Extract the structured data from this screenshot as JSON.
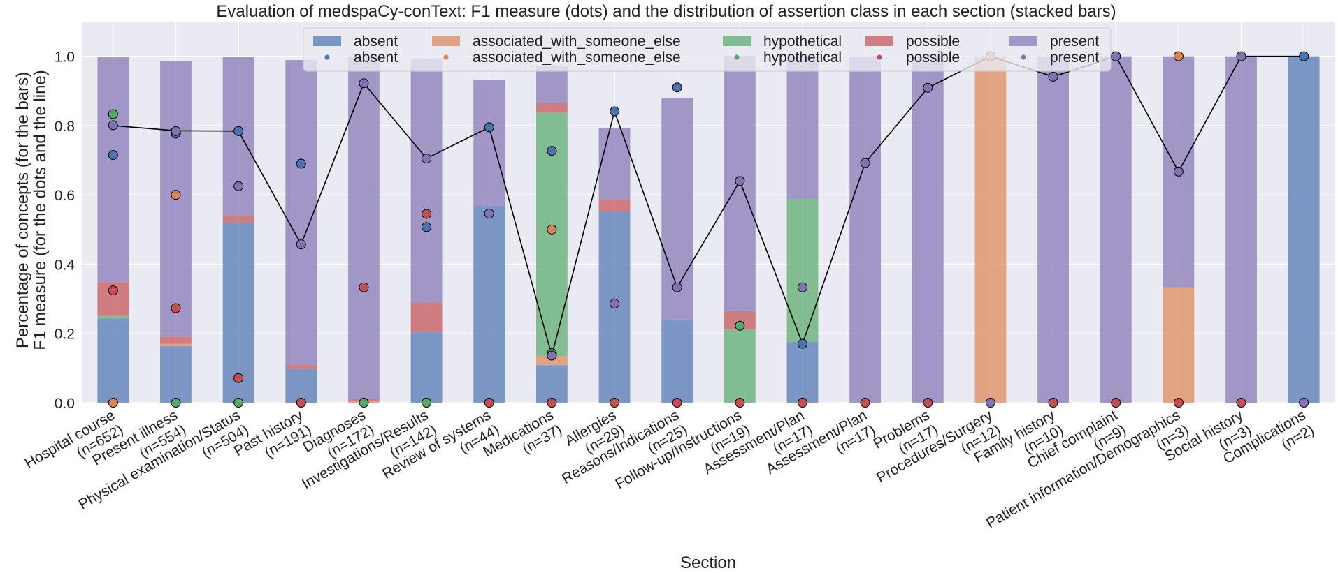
{
  "chart_data": {
    "type": "bar",
    "title": "Evaluation of medspaCy-conText: F1 measure (dots) and the distribution of assertion class in each section (stacked bars)",
    "xlabel": "Section",
    "ylabel_line1": "Percentage of concepts (for the bars)",
    "ylabel_line2": "F1 measure (for the dots and the line)",
    "ylim": [
      0,
      1.1
    ],
    "yticks": [
      "0.0",
      "0.2",
      "0.4",
      "0.6",
      "0.8",
      "1.0"
    ],
    "grid": true,
    "legend_position": "top-center",
    "categories": [
      "Hospital course\n(n=652)",
      "Present illness\n(n=554)",
      "Physical examination/Status\n(n=504)",
      "Past history\n(n=191)",
      "Diagnoses\n(n=172)",
      "Investigations/Results\n(n=142)",
      "Review of systems\n(n=44)",
      "Medications\n(n=37)",
      "Allergies\n(n=29)",
      "Reasons/Indications\n(n=25)",
      "Follow-up/Instructions\n(n=19)",
      "Assessment/Plan\n(n=17)",
      "Assessment/Plan\n(n=17)",
      "Problems\n(n=17)",
      "Procedures/Surgery\n(n=12)",
      "Family history\n(n=10)",
      "Chief complaint\n(n=9)",
      "Patient information/Demographics\n(n=3)",
      "Social history\n(n=3)",
      "Complications\n(n=2)"
    ],
    "bar_series": [
      {
        "name": "absent",
        "color": "#4c72b0",
        "values": [
          0.243,
          0.163,
          0.52,
          0.099,
          0.0,
          0.204,
          0.568,
          0.108,
          0.552,
          0.24,
          0.0,
          0.176,
          0,
          0,
          0,
          0,
          0,
          0,
          0,
          1.0
        ]
      },
      {
        "name": "associated_with_someone_else",
        "color": "#dd8452",
        "values": [
          0.0,
          0.007,
          0.0,
          0.0,
          0.006,
          0.0,
          0.0,
          0.027,
          0.0,
          0.0,
          0.0,
          0.0,
          0,
          0,
          1.0,
          0,
          0,
          0.333,
          0,
          0
        ]
      },
      {
        "name": "hypothetical",
        "color": "#55a868",
        "values": [
          0.008,
          0.0,
          0.0,
          0.0,
          0.0,
          0.0,
          0.0,
          0.703,
          0.0,
          0.0,
          0.211,
          0.412,
          0,
          0,
          0,
          0,
          0,
          0,
          0,
          0
        ]
      },
      {
        "name": "possible",
        "color": "#c44e52",
        "values": [
          0.097,
          0.02,
          0.02,
          0.01,
          0.004,
          0.085,
          0.0,
          0.027,
          0.034,
          0.0,
          0.053,
          0.0,
          0,
          0,
          0,
          0,
          0,
          0,
          0,
          0
        ]
      },
      {
        "name": "present",
        "color": "#8172b3",
        "values": [
          0.649,
          0.796,
          0.458,
          0.88,
          0.99,
          0.704,
          0.364,
          0.108,
          0.207,
          0.64,
          0.737,
          0.412,
          1.0,
          1.0,
          0,
          1.0,
          1.0,
          0.667,
          1.0,
          0
        ]
      }
    ],
    "dot_series": [
      {
        "name": "absent",
        "color": "#4c72b0",
        "values": [
          0.715,
          0.777,
          0.784,
          0.69,
          null,
          0.507,
          0.795,
          0.727,
          0.841,
          0.91,
          null,
          0.17,
          null,
          null,
          null,
          null,
          null,
          null,
          null,
          1.0
        ]
      },
      {
        "name": "associated_with_someone_else",
        "color": "#dd8452",
        "values": [
          0.0,
          0.6,
          null,
          null,
          null,
          null,
          null,
          0.5,
          null,
          null,
          null,
          null,
          null,
          null,
          1.0,
          null,
          null,
          1.0,
          null,
          null
        ]
      },
      {
        "name": "hypothetical",
        "color": "#55a868",
        "values": [
          0.833,
          0.0,
          0.0,
          null,
          0.0,
          0.0,
          null,
          0.143,
          null,
          null,
          0.222,
          null,
          null,
          null,
          null,
          null,
          null,
          null,
          null,
          null
        ]
      },
      {
        "name": "possible",
        "color": "#c44e52",
        "values": [
          0.324,
          0.273,
          0.071,
          0.0,
          0.333,
          0.545,
          0.0,
          0.0,
          0.0,
          0.0,
          0.0,
          0.0,
          0.0,
          0.0,
          null,
          0.0,
          0.0,
          0.0,
          0.0,
          null
        ]
      },
      {
        "name": "present",
        "color": "#8172b3",
        "values": [
          0.801,
          0.784,
          0.625,
          0.457,
          0.922,
          0.705,
          0.546,
          0.136,
          0.286,
          0.333,
          0.64,
          0.333,
          0.692,
          0.909,
          0.0,
          0.941,
          1.0,
          0.667,
          1.0,
          0.0
        ]
      }
    ],
    "line_values": [
      0.8,
      0.785,
      0.784,
      0.457,
      0.922,
      0.705,
      0.795,
      0.136,
      0.841,
      0.333,
      0.64,
      0.17,
      0.692,
      0.909,
      1.0,
      0.941,
      1.0,
      0.667,
      1.0,
      1.0
    ]
  }
}
